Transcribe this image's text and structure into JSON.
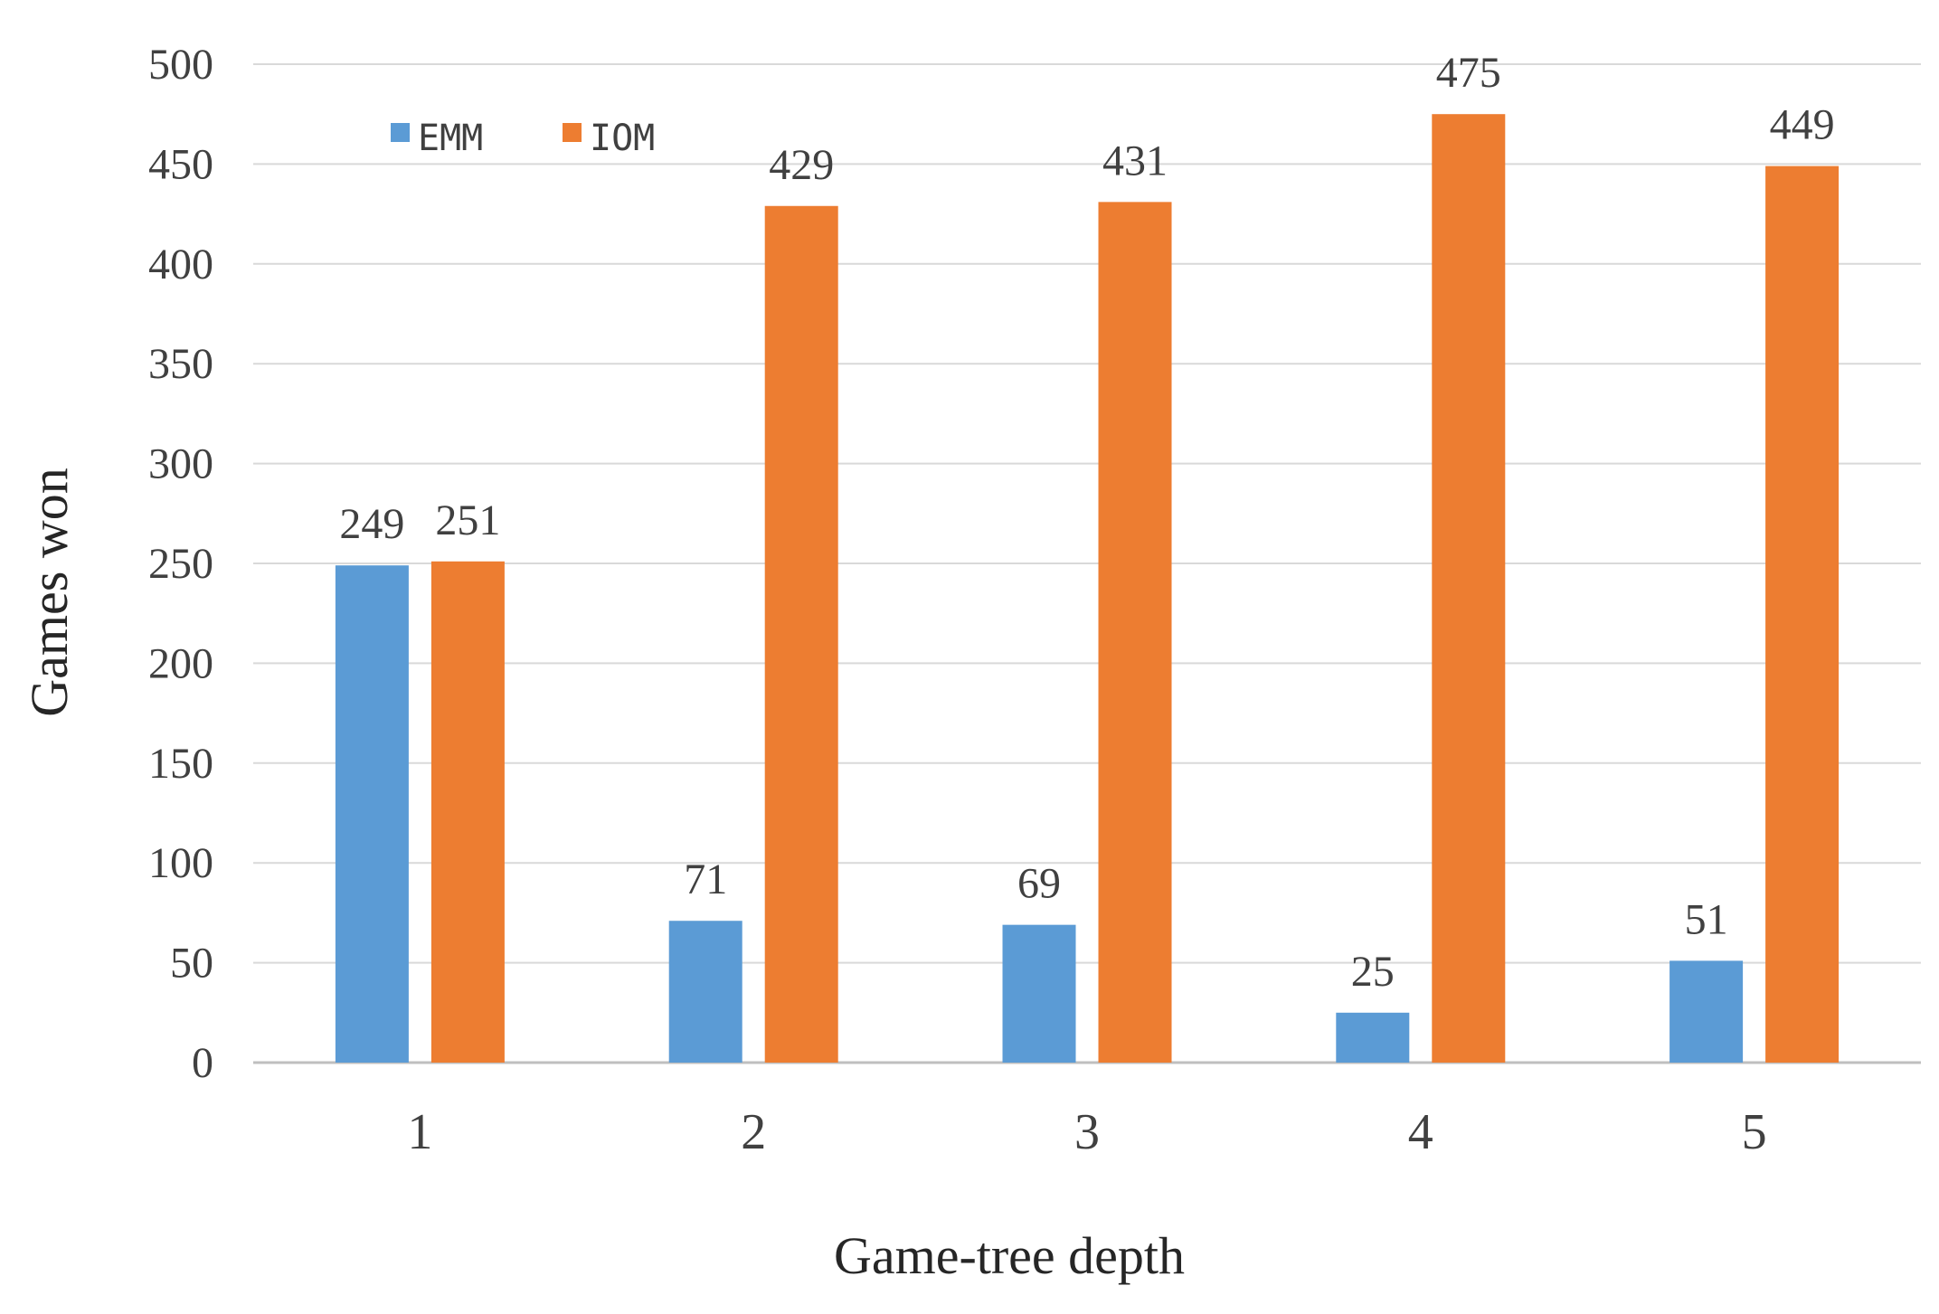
{
  "chart_data": {
    "type": "bar",
    "title": "",
    "xlabel": "Game-tree depth",
    "ylabel": "Games won",
    "categories": [
      "1",
      "2",
      "3",
      "4",
      "5"
    ],
    "series": [
      {
        "name": "EMM",
        "color": "#5b9bd5",
        "values": [
          249,
          71,
          69,
          25,
          51
        ]
      },
      {
        "name": "IOM",
        "color": "#ed7d31",
        "values": [
          251,
          429,
          431,
          475,
          449
        ]
      }
    ],
    "ylim": [
      0,
      500
    ],
    "yticks": [
      "0",
      "50",
      "100",
      "150",
      "200",
      "250",
      "300",
      "350",
      "400",
      "450",
      "500"
    ],
    "grid": true,
    "legend_position": "top-left",
    "data_labels": true
  }
}
